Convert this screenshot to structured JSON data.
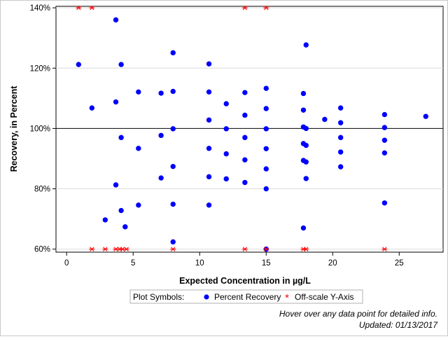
{
  "chart_data": {
    "type": "scatter",
    "xlabel": "Expected Concentration in µg/L",
    "ylabel": "Recovery, in Percent",
    "xlim": [
      -0.8,
      28.3
    ],
    "ylim": [
      59,
      140.5
    ],
    "xticks": [
      0,
      5,
      10,
      15,
      20,
      25
    ],
    "yticks": [
      60,
      80,
      100,
      120,
      140
    ],
    "ytick_labels": [
      "60%",
      "80%",
      "100%",
      "120%",
      "140%"
    ],
    "grid": "horizontal",
    "reference_line": 100,
    "legend_position": "bottom",
    "series": [
      {
        "name": "Percent Recovery",
        "marker": "circle",
        "color": "#0000ff",
        "points": [
          [
            0.9,
            121.2
          ],
          [
            1.9,
            106.8
          ],
          [
            2.9,
            69.7
          ],
          [
            3.7,
            136
          ],
          [
            3.7,
            108.8
          ],
          [
            3.7,
            81.3
          ],
          [
            4.1,
            121.2
          ],
          [
            4.1,
            97
          ],
          [
            4.1,
            72.8
          ],
          [
            4.4,
            67.4
          ],
          [
            5.4,
            112.1
          ],
          [
            5.4,
            93.4
          ],
          [
            5.4,
            74.6
          ],
          [
            7.1,
            111.7
          ],
          [
            7.1,
            97.7
          ],
          [
            7.1,
            83.6
          ],
          [
            8,
            125.1
          ],
          [
            8,
            112.3
          ],
          [
            8,
            99.9
          ],
          [
            8,
            87.4
          ],
          [
            8,
            74.9
          ],
          [
            8,
            62.4
          ],
          [
            10.7,
            121.4
          ],
          [
            10.7,
            112.1
          ],
          [
            10.7,
            102.8
          ],
          [
            10.7,
            93.4
          ],
          [
            10.7,
            84
          ],
          [
            10.7,
            74.6
          ],
          [
            12,
            108.2
          ],
          [
            12,
            99.9
          ],
          [
            12,
            91.6
          ],
          [
            12,
            83.3
          ],
          [
            13.4,
            111.9
          ],
          [
            13.4,
            104.4
          ],
          [
            13.4,
            97
          ],
          [
            13.4,
            89.6
          ],
          [
            13.4,
            82.1
          ],
          [
            15,
            113.3
          ],
          [
            15,
            106.6
          ],
          [
            15,
            99.9
          ],
          [
            15,
            93.3
          ],
          [
            15,
            86.6
          ],
          [
            15,
            80
          ],
          [
            15,
            60
          ],
          [
            17.8,
            111.6
          ],
          [
            17.8,
            106.1
          ],
          [
            17.8,
            100.5
          ],
          [
            17.8,
            95
          ],
          [
            17.8,
            89.4
          ],
          [
            17.8,
            67
          ],
          [
            18,
            127.7
          ],
          [
            18,
            100
          ],
          [
            18,
            94.4
          ],
          [
            18,
            88.9
          ],
          [
            18,
            83.4
          ],
          [
            19.4,
            103
          ],
          [
            20.6,
            106.8
          ],
          [
            20.6,
            101.9
          ],
          [
            20.6,
            97
          ],
          [
            20.6,
            92.2
          ],
          [
            20.6,
            87.3
          ],
          [
            23.9,
            104.6
          ],
          [
            23.9,
            100.3
          ],
          [
            23.9,
            96.1
          ],
          [
            23.9,
            91.9
          ],
          [
            23.9,
            75.3
          ],
          [
            27,
            104
          ]
        ]
      },
      {
        "name": "Off-scale Y-Axis",
        "marker": "asterisk",
        "color": "#ff0000",
        "points": [
          [
            0.9,
            140
          ],
          [
            1.9,
            140
          ],
          [
            13.4,
            140
          ],
          [
            15,
            140
          ],
          [
            1.9,
            60
          ],
          [
            2.9,
            60
          ],
          [
            3.7,
            60
          ],
          [
            4.0,
            60
          ],
          [
            4.2,
            60
          ],
          [
            4.5,
            60
          ],
          [
            8,
            60
          ],
          [
            13.4,
            60
          ],
          [
            15,
            60
          ],
          [
            17.8,
            60
          ],
          [
            18,
            60
          ],
          [
            23.9,
            60
          ]
        ]
      }
    ]
  },
  "legend": {
    "title": "Plot Symbols:",
    "items": [
      {
        "label": "Percent Recovery",
        "marker": "circle",
        "color": "#0000ff"
      },
      {
        "label": "Off-scale Y-Axis",
        "marker": "asterisk",
        "color": "#ff0000"
      }
    ]
  },
  "notes": {
    "hover": "Hover over any data point for detailed info.",
    "updated": "Updated: 01/13/2017"
  }
}
